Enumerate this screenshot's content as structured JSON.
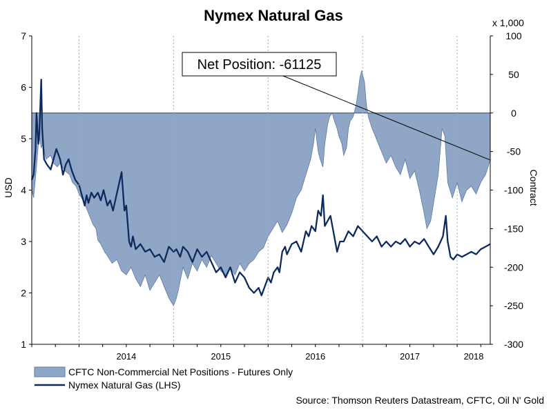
{
  "chart_data": {
    "type": "area",
    "title": "Nymex Natural Gas",
    "ylabel_left": "USD",
    "ylabel_right": "Contract",
    "right_axis_multiplier": "x 1,000",
    "left_ylim": [
      1,
      7
    ],
    "left_ticks": [
      "1",
      "2",
      "3",
      "4",
      "5",
      "6",
      "7"
    ],
    "right_ylim": [
      -300,
      100
    ],
    "right_ticks": [
      "-300",
      "-250",
      "-200",
      "-150",
      "-100",
      "-50",
      "0",
      "50",
      "100"
    ],
    "x_range": [
      2013.5,
      2018.35
    ],
    "x_ticks": [
      "2014",
      "2015",
      "2016",
      "2017",
      "2018"
    ],
    "annotation": "Net Position: -61125",
    "source": "Source: Thomson Reuters Datastream, CFTC, Oil N' Gold",
    "colors": {
      "area_fill": "#8fa6c6",
      "area_edge": "#5b7aa6",
      "line": "#0d2a5c",
      "baseline": "#4a6890"
    },
    "series": [
      {
        "name": "CFTC Non-Commercial Net Positions - Futures Only",
        "axis": "right",
        "style": "area",
        "points": [
          [
            2013.5,
            -100
          ],
          [
            2013.52,
            -110
          ],
          [
            2013.55,
            -70
          ],
          [
            2013.57,
            -40
          ],
          [
            2013.58,
            -30
          ],
          [
            2013.6,
            -45
          ],
          [
            2013.62,
            -40
          ],
          [
            2013.65,
            -60
          ],
          [
            2013.7,
            -55
          ],
          [
            2013.73,
            -65
          ],
          [
            2013.77,
            -70
          ],
          [
            2013.8,
            -65
          ],
          [
            2013.85,
            -75
          ],
          [
            2013.9,
            -80
          ],
          [
            2013.93,
            -90
          ],
          [
            2013.97,
            -95
          ],
          [
            2014.0,
            -105
          ],
          [
            2014.05,
            -115
          ],
          [
            2014.1,
            -130
          ],
          [
            2014.15,
            -145
          ],
          [
            2014.18,
            -150
          ],
          [
            2014.2,
            -165
          ],
          [
            2014.23,
            -170
          ],
          [
            2014.27,
            -180
          ],
          [
            2014.3,
            -185
          ],
          [
            2014.35,
            -195
          ],
          [
            2014.4,
            -190
          ],
          [
            2014.45,
            -205
          ],
          [
            2014.5,
            -210
          ],
          [
            2014.55,
            -200
          ],
          [
            2014.6,
            -215
          ],
          [
            2014.65,
            -225
          ],
          [
            2014.7,
            -210
          ],
          [
            2014.75,
            -230
          ],
          [
            2014.8,
            -220
          ],
          [
            2014.85,
            -210
          ],
          [
            2014.9,
            -225
          ],
          [
            2014.95,
            -240
          ],
          [
            2015.0,
            -250
          ],
          [
            2015.03,
            -240
          ],
          [
            2015.05,
            -230
          ],
          [
            2015.1,
            -200
          ],
          [
            2015.15,
            -215
          ],
          [
            2015.2,
            -195
          ],
          [
            2015.25,
            -205
          ],
          [
            2015.3,
            -190
          ],
          [
            2015.35,
            -200
          ],
          [
            2015.4,
            -185
          ],
          [
            2015.45,
            -195
          ],
          [
            2015.5,
            -205
          ],
          [
            2015.55,
            -210
          ],
          [
            2015.6,
            -200
          ],
          [
            2015.65,
            -210
          ],
          [
            2015.7,
            -195
          ],
          [
            2015.75,
            -205
          ],
          [
            2015.8,
            -195
          ],
          [
            2015.85,
            -190
          ],
          [
            2015.9,
            -180
          ],
          [
            2015.95,
            -175
          ],
          [
            2016.0,
            -160
          ],
          [
            2016.05,
            -150
          ],
          [
            2016.1,
            -140
          ],
          [
            2016.15,
            -155
          ],
          [
            2016.2,
            -145
          ],
          [
            2016.25,
            -130
          ],
          [
            2016.3,
            -110
          ],
          [
            2016.35,
            -100
          ],
          [
            2016.4,
            -80
          ],
          [
            2016.45,
            -60
          ],
          [
            2016.48,
            -40
          ],
          [
            2016.5,
            -20
          ],
          [
            2016.53,
            -50
          ],
          [
            2016.55,
            -60
          ],
          [
            2016.58,
            -70
          ],
          [
            2016.6,
            -40
          ],
          [
            2016.63,
            -15
          ],
          [
            2016.65,
            -5
          ],
          [
            2016.68,
            0
          ],
          [
            2016.7,
            -10
          ],
          [
            2016.73,
            -20
          ],
          [
            2016.75,
            -30
          ],
          [
            2016.78,
            -40
          ],
          [
            2016.8,
            -55
          ],
          [
            2016.83,
            -45
          ],
          [
            2016.85,
            -20
          ],
          [
            2016.87,
            -10
          ],
          [
            2016.9,
            -5
          ],
          [
            2016.93,
            10
          ],
          [
            2016.95,
            25
          ],
          [
            2016.97,
            45
          ],
          [
            2016.99,
            55
          ],
          [
            2017.0,
            50
          ],
          [
            2017.02,
            40
          ],
          [
            2017.04,
            10
          ],
          [
            2017.06,
            -5
          ],
          [
            2017.1,
            -20
          ],
          [
            2017.15,
            -35
          ],
          [
            2017.2,
            -50
          ],
          [
            2017.25,
            -65
          ],
          [
            2017.3,
            -55
          ],
          [
            2017.35,
            -70
          ],
          [
            2017.4,
            -80
          ],
          [
            2017.45,
            -60
          ],
          [
            2017.5,
            -85
          ],
          [
            2017.55,
            -75
          ],
          [
            2017.6,
            -100
          ],
          [
            2017.65,
            -130
          ],
          [
            2017.68,
            -150
          ],
          [
            2017.72,
            -140
          ],
          [
            2017.76,
            -110
          ],
          [
            2017.8,
            -80
          ],
          [
            2017.84,
            -20
          ],
          [
            2017.87,
            -30
          ],
          [
            2017.9,
            -90
          ],
          [
            2017.95,
            -110
          ],
          [
            2018.0,
            -90
          ],
          [
            2018.05,
            -115
          ],
          [
            2018.1,
            -100
          ],
          [
            2018.15,
            -95
          ],
          [
            2018.2,
            -105
          ],
          [
            2018.25,
            -90
          ],
          [
            2018.3,
            -80
          ],
          [
            2018.35,
            -61
          ]
        ]
      },
      {
        "name": "Nymex Natural Gas (LHS)",
        "axis": "left",
        "style": "line",
        "points": [
          [
            2013.5,
            4.2
          ],
          [
            2013.52,
            4.3
          ],
          [
            2013.54,
            4.8
          ],
          [
            2013.55,
            5.5
          ],
          [
            2013.57,
            4.9
          ],
          [
            2013.58,
            5.1
          ],
          [
            2013.6,
            6.15
          ],
          [
            2013.61,
            5.2
          ],
          [
            2013.63,
            4.6
          ],
          [
            2013.66,
            4.5
          ],
          [
            2013.7,
            4.4
          ],
          [
            2013.73,
            4.6
          ],
          [
            2013.76,
            4.8
          ],
          [
            2013.8,
            4.6
          ],
          [
            2013.83,
            4.3
          ],
          [
            2013.86,
            4.5
          ],
          [
            2013.89,
            4.6
          ],
          [
            2013.92,
            4.4
          ],
          [
            2013.96,
            4.2
          ],
          [
            2014.0,
            4.1
          ],
          [
            2014.03,
            3.9
          ],
          [
            2014.06,
            3.7
          ],
          [
            2014.08,
            3.9
          ],
          [
            2014.1,
            3.75
          ],
          [
            2014.13,
            3.95
          ],
          [
            2014.16,
            3.85
          ],
          [
            2014.2,
            3.95
          ],
          [
            2014.23,
            3.8
          ],
          [
            2014.26,
            4.0
          ],
          [
            2014.3,
            3.7
          ],
          [
            2014.33,
            3.8
          ],
          [
            2014.36,
            3.6
          ],
          [
            2014.39,
            3.85
          ],
          [
            2014.42,
            4.1
          ],
          [
            2014.45,
            4.35
          ],
          [
            2014.48,
            3.6
          ],
          [
            2014.5,
            3.7
          ],
          [
            2014.53,
            3.0
          ],
          [
            2014.55,
            2.9
          ],
          [
            2014.57,
            3.1
          ],
          [
            2014.6,
            2.85
          ],
          [
            2014.65,
            2.95
          ],
          [
            2014.7,
            2.8
          ],
          [
            2014.75,
            2.85
          ],
          [
            2014.8,
            2.7
          ],
          [
            2014.85,
            2.75
          ],
          [
            2014.9,
            2.6
          ],
          [
            2014.95,
            2.9
          ],
          [
            2015.0,
            2.8
          ],
          [
            2015.03,
            2.85
          ],
          [
            2015.07,
            2.7
          ],
          [
            2015.1,
            2.9
          ],
          [
            2015.15,
            2.8
          ],
          [
            2015.2,
            2.6
          ],
          [
            2015.25,
            2.85
          ],
          [
            2015.3,
            2.7
          ],
          [
            2015.35,
            2.8
          ],
          [
            2015.4,
            2.6
          ],
          [
            2015.45,
            2.4
          ],
          [
            2015.5,
            2.5
          ],
          [
            2015.55,
            2.3
          ],
          [
            2015.6,
            2.5
          ],
          [
            2015.65,
            2.2
          ],
          [
            2015.7,
            2.4
          ],
          [
            2015.75,
            2.3
          ],
          [
            2015.8,
            2.1
          ],
          [
            2015.85,
            2.0
          ],
          [
            2015.9,
            2.1
          ],
          [
            2015.93,
            1.95
          ],
          [
            2015.96,
            2.1
          ],
          [
            2016.0,
            2.3
          ],
          [
            2016.03,
            2.2
          ],
          [
            2016.06,
            2.4
          ],
          [
            2016.1,
            2.5
          ],
          [
            2016.12,
            2.4
          ],
          [
            2016.15,
            2.8
          ],
          [
            2016.18,
            2.9
          ],
          [
            2016.2,
            2.75
          ],
          [
            2016.25,
            2.95
          ],
          [
            2016.3,
            3.0
          ],
          [
            2016.35,
            2.8
          ],
          [
            2016.4,
            3.2
          ],
          [
            2016.43,
            3.1
          ],
          [
            2016.46,
            3.3
          ],
          [
            2016.5,
            3.2
          ],
          [
            2016.53,
            3.6
          ],
          [
            2016.56,
            3.5
          ],
          [
            2016.58,
            3.9
          ],
          [
            2016.6,
            3.3
          ],
          [
            2016.63,
            3.4
          ],
          [
            2016.66,
            3.5
          ],
          [
            2016.7,
            3.1
          ],
          [
            2016.73,
            2.8
          ],
          [
            2016.76,
            3.0
          ],
          [
            2016.8,
            3.0
          ],
          [
            2016.85,
            3.2
          ],
          [
            2016.9,
            3.1
          ],
          [
            2016.95,
            3.3
          ],
          [
            2017.0,
            3.2
          ],
          [
            2017.05,
            3.1
          ],
          [
            2017.1,
            3.0
          ],
          [
            2017.15,
            3.1
          ],
          [
            2017.2,
            2.9
          ],
          [
            2017.25,
            3.0
          ],
          [
            2017.3,
            2.9
          ],
          [
            2017.35,
            3.0
          ],
          [
            2017.4,
            2.95
          ],
          [
            2017.45,
            3.05
          ],
          [
            2017.5,
            2.9
          ],
          [
            2017.55,
            3.0
          ],
          [
            2017.6,
            2.95
          ],
          [
            2017.65,
            3.05
          ],
          [
            2017.7,
            2.9
          ],
          [
            2017.75,
            2.75
          ],
          [
            2017.8,
            2.9
          ],
          [
            2017.85,
            3.1
          ],
          [
            2017.88,
            3.5
          ],
          [
            2017.9,
            3.0
          ],
          [
            2017.93,
            2.7
          ],
          [
            2017.96,
            2.65
          ],
          [
            2018.0,
            2.75
          ],
          [
            2018.05,
            2.7
          ],
          [
            2018.1,
            2.75
          ],
          [
            2018.15,
            2.8
          ],
          [
            2018.2,
            2.75
          ],
          [
            2018.25,
            2.85
          ],
          [
            2018.3,
            2.9
          ],
          [
            2018.35,
            2.95
          ]
        ]
      }
    ]
  }
}
